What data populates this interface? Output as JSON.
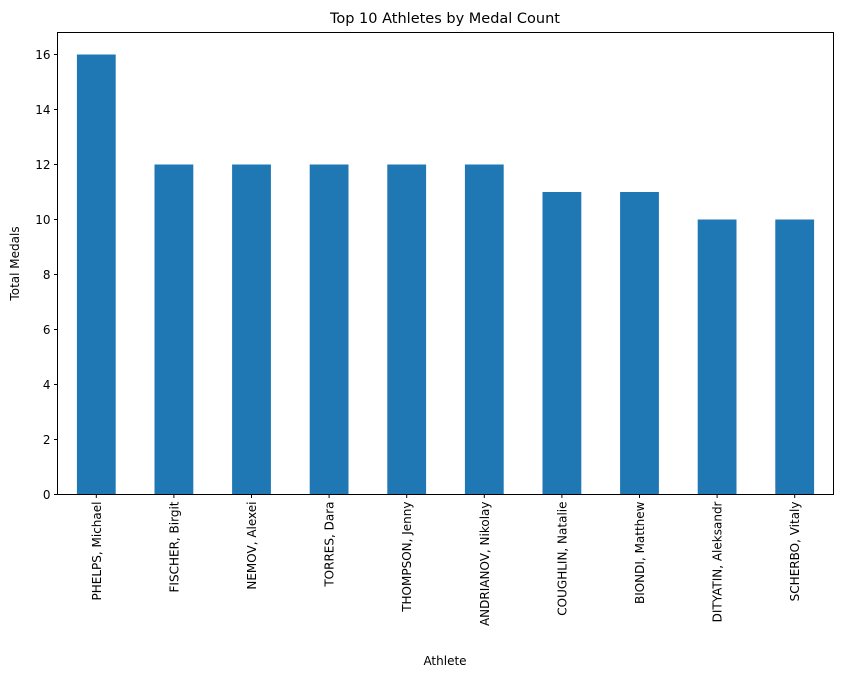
{
  "chart_data": {
    "type": "bar",
    "title": "Top 10 Athletes by Medal Count",
    "xlabel": "Athlete",
    "ylabel": "Total Medals",
    "categories": [
      "PHELPS, Michael",
      "FISCHER, Birgit",
      "NEMOV, Alexei",
      "TORRES, Dara",
      "THOMPSON, Jenny",
      "ANDRIANOV, Nikolay",
      "COUGHLIN, Natalie",
      "BIONDI, Matthew",
      "DITYATIN, Aleksandr",
      "SCHERBO, Vitaly"
    ],
    "values": [
      16,
      12,
      12,
      12,
      12,
      12,
      11,
      11,
      10,
      10
    ],
    "ylim": [
      0,
      16.8
    ],
    "yticks": [
      0,
      2,
      4,
      6,
      8,
      10,
      12,
      14,
      16
    ],
    "grid": false,
    "legend": false,
    "bar_color": "#1f77b4"
  }
}
